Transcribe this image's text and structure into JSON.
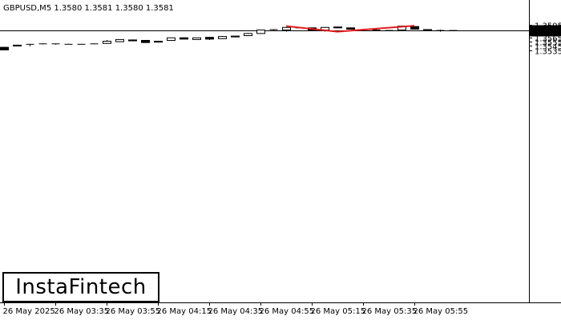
{
  "header": {
    "symbol_title": "GBPUSD,M5  1.3580 1.3581 1.3580 1.3581"
  },
  "logo": {
    "text": "InstaFintech"
  },
  "chart_data": {
    "type": "candlestick",
    "symbol": "GBPUSD",
    "timeframe": "M5",
    "ohlc_header": {
      "open": 1.358,
      "high": 1.3581,
      "low": 1.358,
      "close": 1.3581
    },
    "current_price": 1.3581,
    "current_price_label": "1.3581",
    "ylim": [
      1.353,
      1.3599
    ],
    "y_ticks": [
      "1.3595",
      "1.3585",
      "1.3575",
      "1.3565",
      "1.3555",
      "1.3545",
      "1.3535"
    ],
    "x_ticks": [
      "26 May 2025",
      "26 May 03:35",
      "26 May 03:55",
      "26 May 04:15",
      "26 May 04:35",
      "26 May 04:55",
      "26 May 05:15",
      "26 May 05:35",
      "26 May 05:55"
    ],
    "candles": [
      {
        "o": 1.3542,
        "h": 1.3543,
        "l": 1.3536,
        "c": 1.3536
      },
      {
        "o": 1.3545,
        "h": 1.3548,
        "l": 1.3545,
        "c": 1.3547
      },
      {
        "o": 1.3549,
        "h": 1.3549,
        "l": 1.3544,
        "c": 1.3549
      },
      {
        "o": 1.355,
        "h": 1.3551,
        "l": 1.3549,
        "c": 1.355
      },
      {
        "o": 1.3549,
        "h": 1.355,
        "l": 1.3548,
        "c": 1.355
      },
      {
        "o": 1.3549,
        "h": 1.355,
        "l": 1.3549,
        "c": 1.3549
      },
      {
        "o": 1.3549,
        "h": 1.355,
        "l": 1.3549,
        "c": 1.3549
      },
      {
        "o": 1.355,
        "h": 1.355,
        "l": 1.3549,
        "c": 1.355
      },
      {
        "o": 1.3551,
        "h": 1.3559,
        "l": 1.355,
        "c": 1.3556
      },
      {
        "o": 1.3555,
        "h": 1.356,
        "l": 1.3554,
        "c": 1.356
      },
      {
        "o": 1.3559,
        "h": 1.356,
        "l": 1.3557,
        "c": 1.3557
      },
      {
        "o": 1.3558,
        "h": 1.3558,
        "l": 1.3552,
        "c": 1.3553
      },
      {
        "o": 1.3554,
        "h": 1.3557,
        "l": 1.3553,
        "c": 1.3556
      },
      {
        "o": 1.3558,
        "h": 1.3564,
        "l": 1.3557,
        "c": 1.3564
      },
      {
        "o": 1.3564,
        "h": 1.3565,
        "l": 1.3561,
        "c": 1.3561
      },
      {
        "o": 1.356,
        "h": 1.3564,
        "l": 1.356,
        "c": 1.3564
      },
      {
        "o": 1.3565,
        "h": 1.3566,
        "l": 1.3559,
        "c": 1.3561
      },
      {
        "o": 1.3562,
        "h": 1.3568,
        "l": 1.3561,
        "c": 1.3567
      },
      {
        "o": 1.3566,
        "h": 1.3568,
        "l": 1.3565,
        "c": 1.3568
      },
      {
        "o": 1.3569,
        "h": 1.3575,
        "l": 1.3568,
        "c": 1.3574
      },
      {
        "o": 1.3574,
        "h": 1.3582,
        "l": 1.3573,
        "c": 1.3582
      },
      {
        "o": 1.3583,
        "h": 1.3584,
        "l": 1.3581,
        "c": 1.3583
      },
      {
        "o": 1.3582,
        "h": 1.3588,
        "l": 1.3578,
        "c": 1.3588
      },
      {
        "o": 1.3587,
        "h": 1.3588,
        "l": 1.3586,
        "c": 1.3586
      },
      {
        "o": 1.3587,
        "h": 1.3587,
        "l": 1.3582,
        "c": 1.3582
      },
      {
        "o": 1.3582,
        "h": 1.3589,
        "l": 1.3578,
        "c": 1.3588
      },
      {
        "o": 1.3589,
        "h": 1.359,
        "l": 1.3587,
        "c": 1.3587
      },
      {
        "o": 1.3587,
        "h": 1.3588,
        "l": 1.3584,
        "c": 1.3584
      },
      {
        "o": 1.3583,
        "h": 1.3585,
        "l": 1.3582,
        "c": 1.3583
      },
      {
        "o": 1.3582,
        "h": 1.3584,
        "l": 1.358,
        "c": 1.3582
      },
      {
        "o": 1.3581,
        "h": 1.3582,
        "l": 1.358,
        "c": 1.3581
      },
      {
        "o": 1.3582,
        "h": 1.3592,
        "l": 1.3581,
        "c": 1.3591
      },
      {
        "o": 1.359,
        "h": 1.359,
        "l": 1.3583,
        "c": 1.3584
      },
      {
        "o": 1.3583,
        "h": 1.3583,
        "l": 1.358,
        "c": 1.3581
      },
      {
        "o": 1.3581,
        "h": 1.3583,
        "l": 1.3578,
        "c": 1.358
      },
      {
        "o": 1.358,
        "h": 1.3581,
        "l": 1.358,
        "c": 1.3581
      }
    ],
    "pattern_line": {
      "color": "#e31b1b",
      "points": [
        {
          "candle": 22,
          "price": 1.3591
        },
        {
          "candle": 26,
          "price": 1.3578
        },
        {
          "candle": 32,
          "price": 1.3592
        }
      ]
    },
    "colors": {
      "bull_fill": "#ffffff",
      "bear_fill": "#000000",
      "outline": "#000000",
      "price_line": "#000000",
      "price_label_bg": "#000000",
      "price_label_text": "#ffffff",
      "pattern": "#e31b1b"
    }
  }
}
